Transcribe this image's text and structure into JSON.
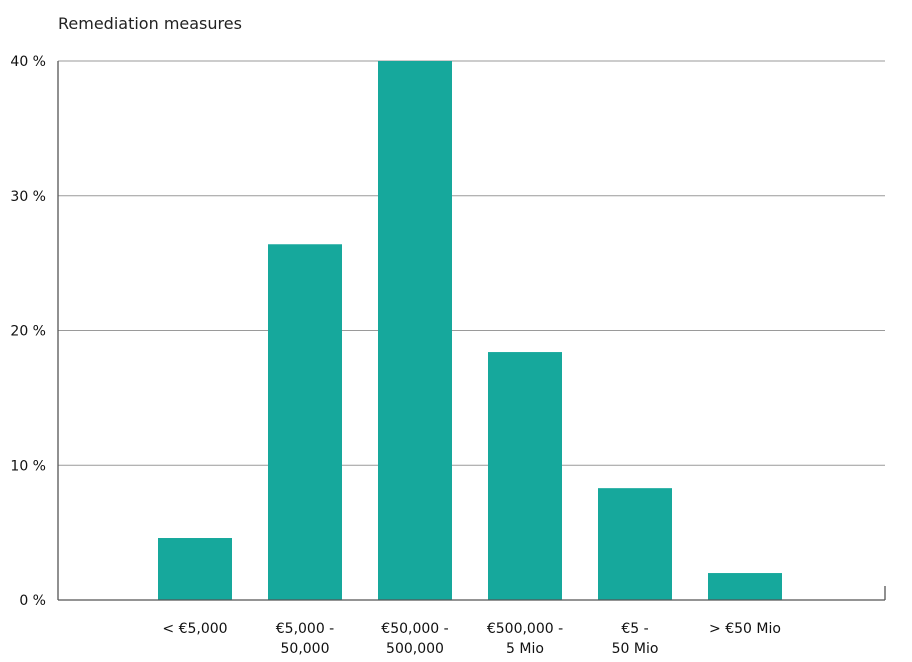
{
  "chart_data": {
    "type": "bar",
    "title": "Remediation measures",
    "xlabel": "",
    "ylabel": "",
    "ylim": [
      0,
      40
    ],
    "yticks": [
      {
        "value": 0,
        "label": "0 %"
      },
      {
        "value": 10,
        "label": "10 %"
      },
      {
        "value": 20,
        "label": "20 %"
      },
      {
        "value": 30,
        "label": "30 %"
      },
      {
        "value": 40,
        "label": "40 %"
      }
    ],
    "grid": true,
    "legend": "none",
    "categories": [
      [
        "< €5,000"
      ],
      [
        "€5,000 -",
        "50,000"
      ],
      [
        "€50,000 -",
        "500,000"
      ],
      [
        "€500,000 -",
        "5 Mio"
      ],
      [
        "€5 -",
        "50 Mio"
      ],
      [
        "> €50 Mio"
      ]
    ],
    "values": [
      4.6,
      26.4,
      40.0,
      18.4,
      8.3,
      2.0
    ],
    "bar_color": "#16a89c"
  }
}
